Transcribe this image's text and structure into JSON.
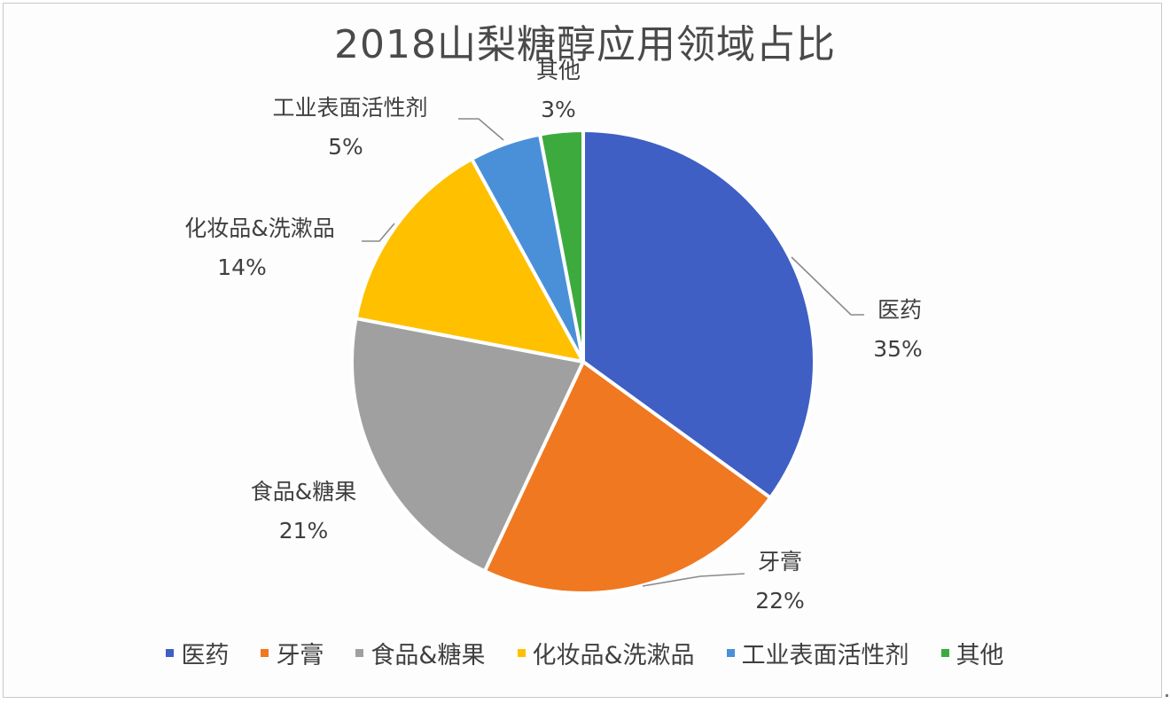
{
  "title": "2018山梨糖醇应用领域占比",
  "chart_data": {
    "type": "pie",
    "title": "2018山梨糖醇应用领域占比",
    "categories": [
      "医药",
      "牙膏",
      "食品&糖果",
      "化妆品&洗漱品",
      "工业表面活性剂",
      "其他"
    ],
    "values": [
      35,
      22,
      21,
      14,
      5,
      3
    ],
    "unit": "%",
    "colors": [
      "#4472C4",
      "#ED7D31",
      "#A5A5A5",
      "#FFC000",
      "#5B9BD5",
      "#4CAF50"
    ],
    "start_angle_deg": 0,
    "direction": "clockwise",
    "data_labels": [
      "35%",
      "22%",
      "21%",
      "14%",
      "5%",
      "3%"
    ],
    "legend_position": "bottom"
  },
  "labels": [
    {
      "name": "医药",
      "pct": "35%"
    },
    {
      "name": "牙膏",
      "pct": "22%"
    },
    {
      "name": "食品&糖果",
      "pct": "21%"
    },
    {
      "name": "化妆品&洗漱品",
      "pct": "14%"
    },
    {
      "name": "工业表面活性剂",
      "pct": "5%"
    },
    {
      "name": "其他",
      "pct": "3%"
    }
  ],
  "legend": [
    {
      "label": "医药",
      "color": "#3F5FC4"
    },
    {
      "label": "牙膏",
      "color": "#F07820"
    },
    {
      "label": "食品&糖果",
      "color": "#A0A0A0"
    },
    {
      "label": "化妆品&洗漱品",
      "color": "#FFC000"
    },
    {
      "label": "工业表面活性剂",
      "color": "#4A90D9"
    },
    {
      "label": "其他",
      "color": "#3DAA3D"
    }
  ]
}
